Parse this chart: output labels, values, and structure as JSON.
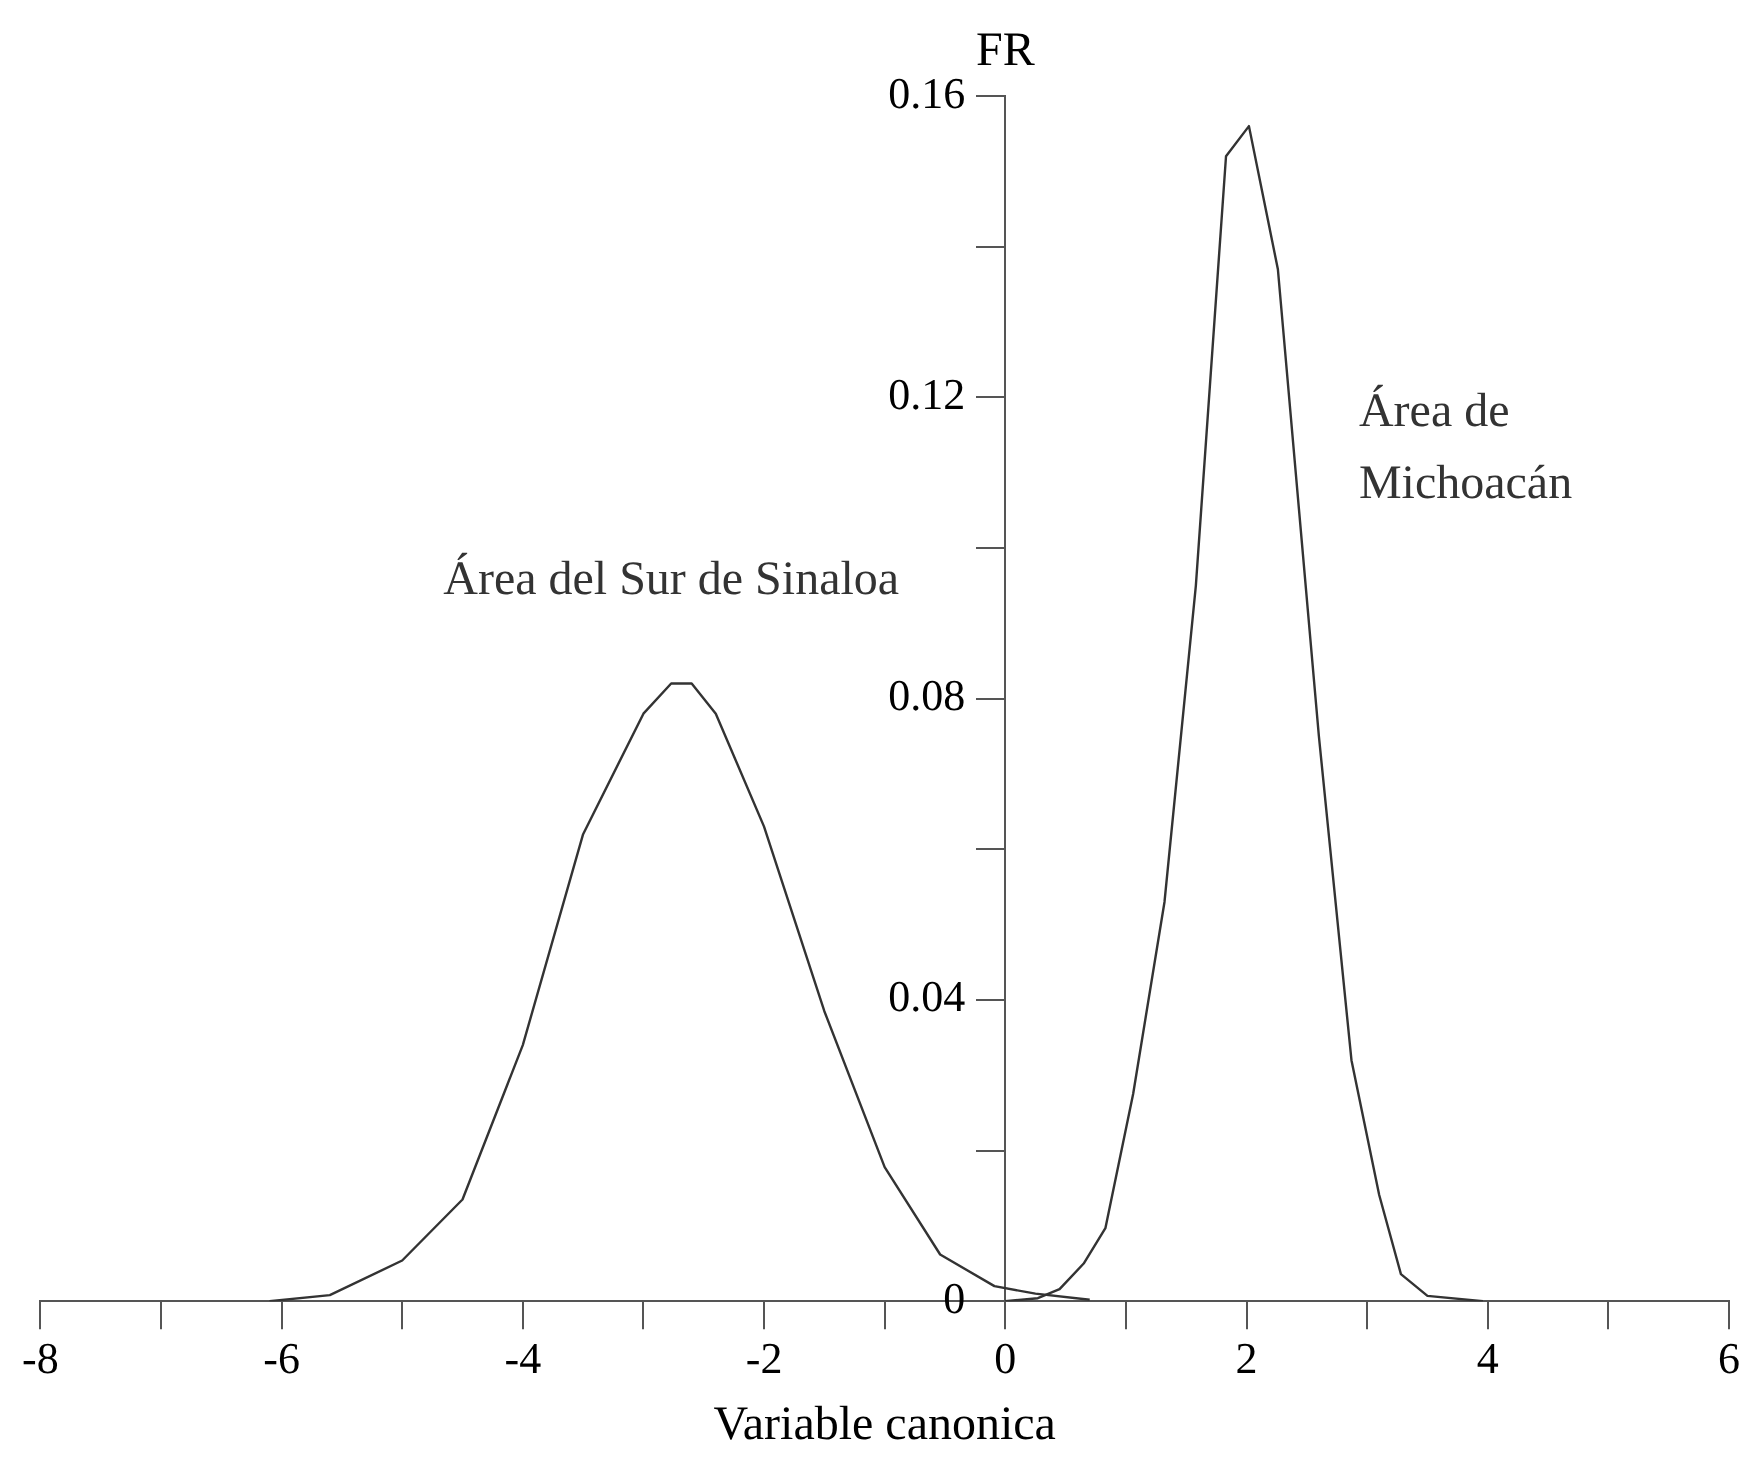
{
  "chart_data": {
    "type": "line",
    "xlabel": "Variable canonica",
    "ylabel": "FR",
    "xlim": [
      -8,
      6
    ],
    "xticks": [
      -8,
      {
        "value": -7,
        "label": null
      },
      -6,
      {
        "value": -5,
        "label": null
      },
      -4,
      {
        "value": -3,
        "label": null
      },
      -2,
      {
        "value": -1,
        "label": null
      },
      0,
      {
        "value": 1,
        "label": null
      },
      2,
      {
        "value": 3,
        "label": null
      },
      4,
      {
        "value": 5,
        "label": null
      },
      6
    ],
    "ylim": [
      0,
      0.16
    ],
    "yticks": [
      0,
      {
        "value": 0.02,
        "label": null
      },
      0.04,
      {
        "value": 0.06,
        "label": null
      },
      0.08,
      {
        "value": 0.1,
        "label": null
      },
      0.12,
      {
        "value": 0.14,
        "label": null
      },
      0.16
    ],
    "grid": false,
    "legend": false,
    "marker": "none",
    "line_style": "solid",
    "series": [
      {
        "name": "Área del Sur de Sinaloa",
        "color": "#333333",
        "x": [
          -6.1,
          -5.6,
          -5.0,
          -4.5,
          -4.0,
          -3.5,
          -3.0,
          -2.77,
          -2.6,
          -2.4,
          -2.0,
          -1.5,
          -1.0,
          -0.54,
          -0.09,
          0.25,
          0.7
        ],
        "values": [
          0,
          0.0008,
          0.0054,
          0.0135,
          0.034,
          0.062,
          0.078,
          0.082,
          0.082,
          0.078,
          0.063,
          0.0385,
          0.0178,
          0.0062,
          0.002,
          0.001,
          0.0002
        ]
      },
      {
        "name": "Área de Michoacán",
        "color": "#333333",
        "x": [
          0.0,
          0.27,
          0.45,
          0.65,
          0.83,
          1.06,
          1.32,
          1.58,
          1.83,
          2.02,
          2.26,
          2.6,
          2.87,
          3.1,
          3.28,
          3.5,
          3.96
        ],
        "values": [
          0,
          0.0004,
          0.0016,
          0.005,
          0.0097,
          0.0275,
          0.053,
          0.095,
          0.152,
          0.156,
          0.137,
          0.075,
          0.032,
          0.0141,
          0.0036,
          0.0007,
          0
        ]
      }
    ]
  }
}
